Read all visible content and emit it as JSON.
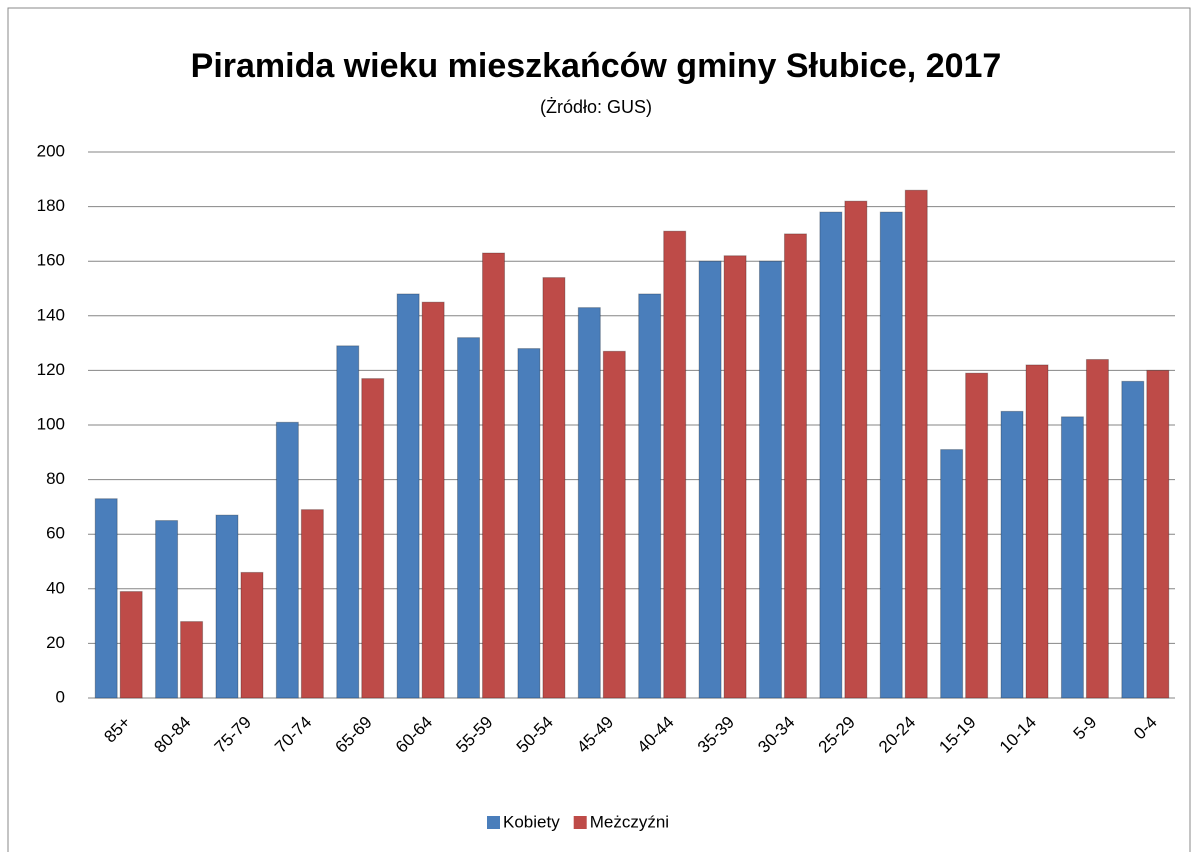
{
  "chart_data": {
    "type": "bar",
    "title": "Piramida wieku mieszkańców gminy Słubice, 2017",
    "subtitle": "(Żródło: GUS)",
    "categories": [
      "85+",
      "80-84",
      "75-79",
      "70-74",
      "65-69",
      "60-64",
      "55-59",
      "50-54",
      "45-49",
      "40-44",
      "35-39",
      "30-34",
      "25-29",
      "20-24",
      "15-19",
      "10-14",
      "5-9",
      "0-4"
    ],
    "series": [
      {
        "name": "Kobiety",
        "color": "#4a7ebb",
        "values": [
          73,
          65,
          67,
          101,
          129,
          148,
          132,
          128,
          143,
          148,
          160,
          160,
          178,
          178,
          91,
          105,
          103,
          116
        ]
      },
      {
        "name": "Meżczyźni",
        "color": "#be4b48",
        "values": [
          39,
          28,
          46,
          69,
          117,
          145,
          163,
          154,
          127,
          171,
          162,
          170,
          182,
          186,
          119,
          122,
          124,
          120
        ]
      }
    ],
    "ylim": [
      0,
      200
    ],
    "yticks": [
      0,
      20,
      40,
      60,
      80,
      100,
      120,
      140,
      160,
      180,
      200
    ],
    "grid": true,
    "legend": "bottom"
  }
}
